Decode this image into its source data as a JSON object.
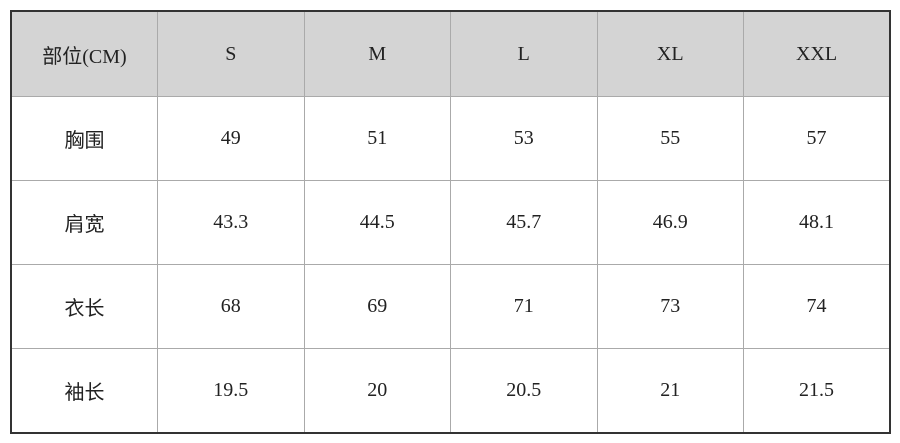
{
  "table": {
    "header": [
      "部位(CM)",
      "S",
      "M",
      "L",
      "XL",
      "XXL"
    ],
    "rows": [
      [
        "胸围",
        "49",
        "51",
        "53",
        "55",
        "57"
      ],
      [
        "肩宽",
        "43.3",
        "44.5",
        "45.7",
        "46.9",
        "48.1"
      ],
      [
        "衣长",
        "68",
        "69",
        "71",
        "73",
        "74"
      ],
      [
        "袖长",
        "19.5",
        "20",
        "20.5",
        "21",
        "21.5"
      ]
    ]
  }
}
